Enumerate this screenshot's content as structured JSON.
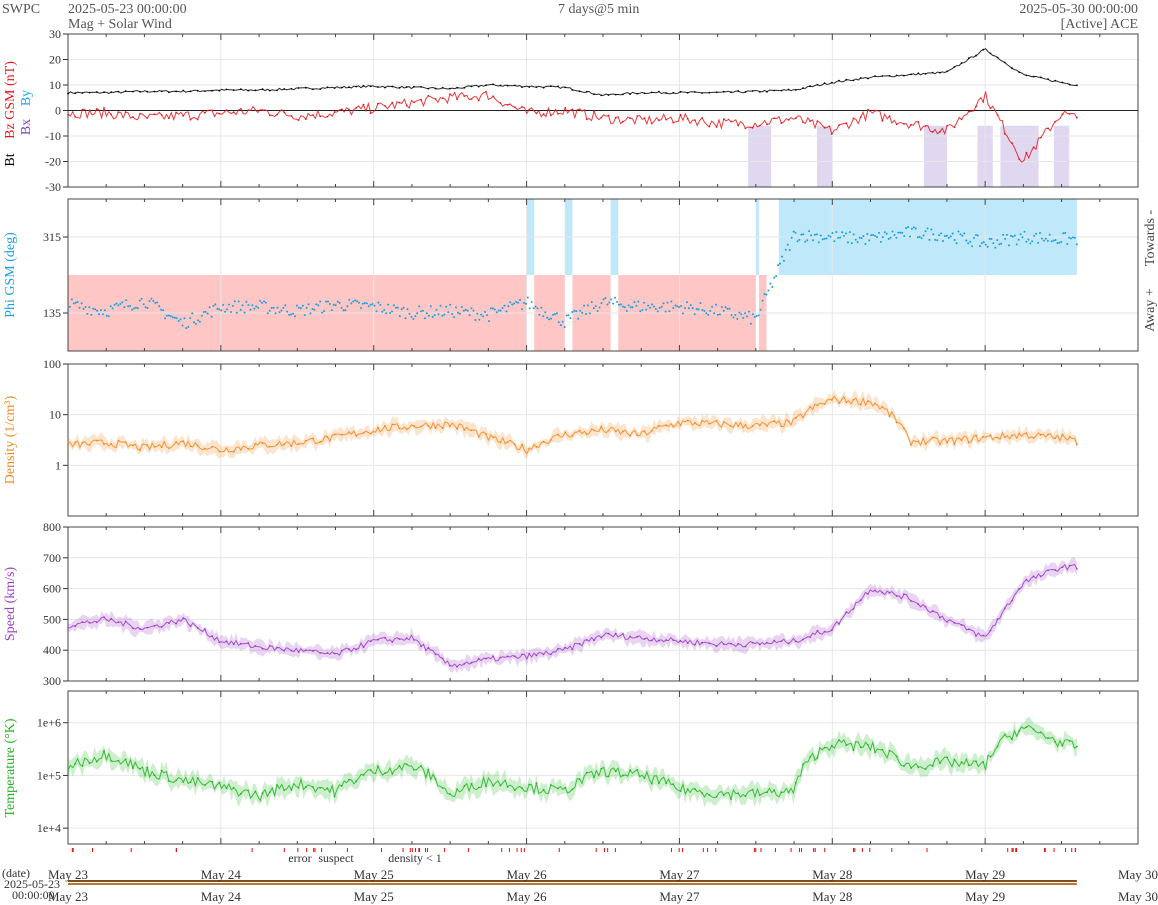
{
  "header": {
    "brand": "SWPC",
    "start_time": "2025-05-23 00:00:00",
    "product": "Mag + Solar Wind",
    "span": "7 days@5 min",
    "end_time": "2025-05-30 00:00:00",
    "source": "[Active] ACE"
  },
  "colors": {
    "bt": "#000000",
    "bz": "#e8171b",
    "bx": "#7a3fb5",
    "by": "#1aa7e6",
    "phi": "#1a9fe0",
    "away_band": "#ffc6c6",
    "towards_band": "#bfe9fb",
    "density": "#f2881e",
    "speed": "#9a3cc6",
    "temperature": "#22b422",
    "error": "#e01010",
    "suspect": "#e8b800",
    "density_lt_1": "#f2881e"
  },
  "chart_data": [
    {
      "type": "line",
      "id": "mag",
      "ylabel_parts": [
        "Bt",
        "Bz GSM (nT)",
        "Bx",
        "By"
      ],
      "ylim": [
        -30,
        30
      ],
      "yticks": [
        -30,
        -20,
        -10,
        0,
        10,
        20,
        30
      ],
      "x_days": [
        0,
        0.25,
        0.5,
        0.75,
        1,
        1.25,
        1.5,
        1.75,
        2,
        2.25,
        2.5,
        2.75,
        3,
        3.25,
        3.5,
        3.75,
        4,
        4.25,
        4.5,
        4.75,
        5,
        5.25,
        5.5,
        5.75,
        6,
        6.25,
        6.5,
        6.6
      ],
      "series": [
        {
          "name": "Bt",
          "values": [
            7,
            7,
            7.5,
            7.5,
            8,
            8,
            8.5,
            9,
            9.5,
            9,
            8.5,
            10,
            9.5,
            9,
            6,
            7,
            7,
            7,
            7.5,
            8,
            11,
            13,
            14,
            15,
            24,
            14,
            11,
            10
          ]
        },
        {
          "name": "Bz",
          "values": [
            -1,
            -1,
            -3,
            -2,
            -1,
            0,
            -2,
            -1,
            1,
            3,
            5,
            6,
            -1,
            0,
            -3,
            -4,
            -3,
            -5,
            -5,
            -3,
            -8,
            -1,
            -5,
            -8,
            6,
            -20,
            -1,
            -3
          ]
        }
      ]
    },
    {
      "type": "scatter",
      "id": "phi",
      "ylabel": "Phi GSM (deg)",
      "yticks": [
        135,
        315
      ],
      "ylim": [
        45,
        405
      ],
      "side_labels": [
        "Towards -",
        "Away +"
      ],
      "x_days": [
        0,
        0.25,
        0.5,
        0.75,
        1,
        1.25,
        1.5,
        1.75,
        2,
        2.25,
        2.5,
        2.75,
        3,
        3.25,
        3.5,
        3.75,
        4,
        4.25,
        4.5,
        4.75,
        5,
        5.25,
        5.5,
        5.75,
        6,
        6.25,
        6.5,
        6.6
      ],
      "values": [
        155,
        140,
        165,
        110,
        150,
        150,
        140,
        155,
        150,
        135,
        140,
        130,
        160,
        115,
        160,
        150,
        150,
        140,
        120,
        320,
        315,
        310,
        325,
        320,
        300,
        315,
        310,
        310
      ]
    },
    {
      "type": "line",
      "id": "density",
      "ylabel": "Density (1/cm³)",
      "yscale": "log",
      "ylim": [
        0.1,
        100
      ],
      "yticks": [
        1,
        10,
        100
      ],
      "x_days": [
        0,
        0.25,
        0.5,
        0.75,
        1,
        1.25,
        1.5,
        1.75,
        2,
        2.25,
        2.5,
        2.75,
        3,
        3.25,
        3.5,
        3.75,
        4,
        4.25,
        4.5,
        4.75,
        5,
        5.25,
        5.5,
        5.75,
        6,
        6.25,
        6.5,
        6.6
      ],
      "values": [
        2.5,
        2.8,
        2.2,
        2.8,
        2,
        2.5,
        2.8,
        3.5,
        5,
        6,
        6.5,
        3.5,
        2,
        4,
        5,
        4,
        7,
        6.5,
        6,
        7,
        20,
        18,
        3,
        3,
        3.5,
        4,
        3.5,
        3
      ]
    },
    {
      "type": "line",
      "id": "speed",
      "ylabel": "Speed (km/s)",
      "ylim": [
        300,
        800
      ],
      "yticks": [
        300,
        400,
        500,
        600,
        700,
        800
      ],
      "x_days": [
        0,
        0.25,
        0.5,
        0.75,
        1,
        1.25,
        1.5,
        1.75,
        2,
        2.25,
        2.5,
        2.75,
        3,
        3.25,
        3.5,
        3.75,
        4,
        4.25,
        4.5,
        4.75,
        5,
        5.25,
        5.5,
        5.75,
        6,
        6.25,
        6.5,
        6.6
      ],
      "values": [
        480,
        500,
        470,
        500,
        430,
        410,
        400,
        385,
        430,
        440,
        350,
        370,
        380,
        400,
        450,
        440,
        430,
        420,
        420,
        430,
        470,
        600,
        570,
        500,
        440,
        620,
        670,
        670
      ]
    },
    {
      "type": "line",
      "id": "temperature",
      "ylabel": "Temperature (°K)",
      "yscale": "log",
      "ylim": [
        5000,
        4000000
      ],
      "ytick_values": [
        10000,
        100000,
        1000000
      ],
      "ytick_labels": [
        "1e+4",
        "1e+5",
        "1e+6"
      ],
      "x_days": [
        0,
        0.25,
        0.5,
        0.75,
        1,
        1.25,
        1.5,
        1.75,
        2,
        2.25,
        2.5,
        2.75,
        3,
        3.25,
        3.5,
        3.75,
        4,
        4.25,
        4.5,
        4.75,
        5,
        5.25,
        5.5,
        5.75,
        6,
        6.25,
        6.5,
        6.6
      ],
      "values": [
        150000,
        250000,
        120000,
        80000,
        60000,
        40000,
        70000,
        50000,
        120000,
        150000,
        40000,
        80000,
        60000,
        50000,
        120000,
        100000,
        55000,
        45000,
        45000,
        50000,
        400000,
        350000,
        150000,
        180000,
        150000,
        800000,
        400000,
        350000
      ]
    }
  ],
  "legend": {
    "error": "error",
    "suspect": "suspect",
    "density": "density < 1"
  },
  "x_axis": {
    "date_label": "(date)",
    "start_date": "2025-05-23",
    "start_time": "00:00:00",
    "days": [
      "May 23",
      "May 24",
      "May 25",
      "May 26",
      "May 27",
      "May 28",
      "May 29",
      "May 30"
    ]
  }
}
